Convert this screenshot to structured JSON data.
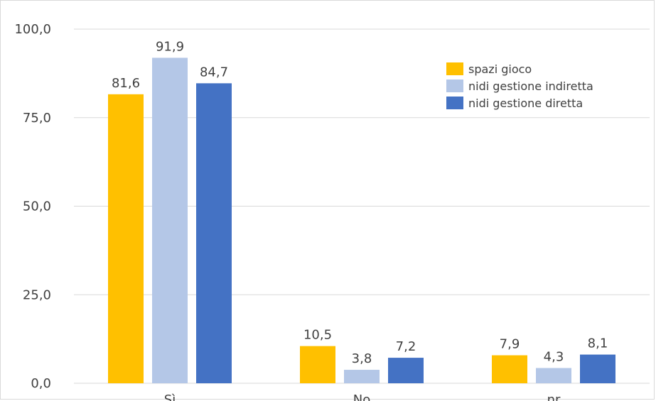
{
  "chart_data": {
    "type": "bar",
    "categories": [
      "Sì",
      "No",
      "nr"
    ],
    "series": [
      {
        "name": "spazi gioco",
        "color": "#FFC000",
        "values": [
          81.6,
          10.5,
          7.9
        ],
        "labels": [
          "81,6",
          "10,5",
          "7,9"
        ]
      },
      {
        "name": "nidi gestione indiretta",
        "color": "#B4C7E7",
        "values": [
          91.9,
          3.8,
          4.3
        ],
        "labels": [
          "91,9",
          "3,8",
          "4,3"
        ]
      },
      {
        "name": "nidi gestione diretta",
        "color": "#4472C4",
        "values": [
          84.7,
          7.2,
          8.1
        ],
        "labels": [
          "84,7",
          "7,2",
          "8,1"
        ]
      }
    ],
    "ylim": [
      0,
      100
    ],
    "yticks": [
      0,
      25,
      50,
      75,
      100
    ],
    "ytick_labels": [
      "0,0",
      "25,0",
      "50,0",
      "75,0",
      "100,0"
    ],
    "grid": true,
    "legend_position": "top-right"
  }
}
